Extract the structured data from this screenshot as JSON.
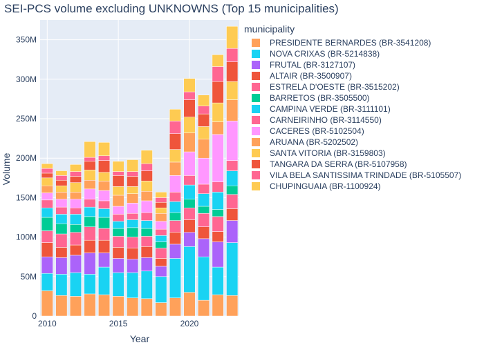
{
  "chart_data": {
    "type": "bar",
    "stacked": true,
    "title": "SEI-PCS volume excluding UNKNOWNS (Top 15 municipalities)",
    "xlabel": "Year",
    "ylabel": "Volume",
    "x_ticks": [
      "2010",
      "2015",
      "2020"
    ],
    "y_ticks": [
      "0",
      "50M",
      "100M",
      "150M",
      "200M",
      "250M",
      "300M",
      "350M"
    ],
    "ylim": [
      0,
      375000000
    ],
    "xlim": [
      2009.5,
      2023.5
    ],
    "legend_title": "municipality",
    "legend_position": "right",
    "grid": true,
    "categories": [
      2010,
      2011,
      2012,
      2013,
      2014,
      2015,
      2016,
      2017,
      2018,
      2019,
      2020,
      2021,
      2022,
      2023
    ],
    "series": [
      {
        "name": "PRESIDENTE BERNARDES (BR-3541208)",
        "color": "#FFA15A",
        "values": [
          32,
          26,
          25,
          28,
          27,
          25,
          23,
          22,
          17,
          23,
          30,
          20,
          27,
          26
        ]
      },
      {
        "name": "NOVA CRIXAS (BR-5214838)",
        "color": "#19D3F3",
        "values": [
          22,
          27,
          30,
          25,
          35,
          30,
          32,
          35,
          33,
          50,
          58,
          55,
          35,
          67
        ]
      },
      {
        "name": "FRUTAL (BR-3127107)",
        "color": "#AB63FA",
        "values": [
          21,
          21,
          22,
          27,
          18,
          18,
          17,
          17,
          13,
          18,
          18,
          23,
          32,
          28
        ]
      },
      {
        "name": "ALTAIR (BR-3500907)",
        "color": "#EF553B",
        "values": [
          18,
          13,
          13,
          16,
          16,
          14,
          14,
          14,
          10,
          15,
          16,
          15,
          13,
          15
        ]
      },
      {
        "name": "ESTRELA D'OESTE (BR-3515202)",
        "color": "#FF6692",
        "values": [
          15,
          17,
          16,
          17,
          15,
          14,
          14,
          13,
          13,
          15,
          15,
          17,
          19,
          18
        ]
      },
      {
        "name": "BARRETOS (BR-3505500)",
        "color": "#00CC96",
        "values": [
          17,
          13,
          10,
          13,
          14,
          10,
          12,
          10,
          8,
          10,
          11,
          9,
          9,
          11
        ]
      },
      {
        "name": "CAMPINA VERDE (BR-3111101)",
        "color": "#19D3F3",
        "values": [
          12,
          12,
          13,
          12,
          11,
          9,
          10,
          10,
          8,
          14,
          18,
          16,
          22,
          19
        ]
      },
      {
        "name": "CARNEIRINHO (BR-3114550)",
        "color": "#FF6692",
        "values": [
          10,
          9,
          8,
          10,
          10,
          9,
          8,
          10,
          8,
          12,
          12,
          12,
          13,
          13
        ]
      },
      {
        "name": "CACERES (BR-5102504)",
        "color": "#FF97FF",
        "values": [
          9,
          10,
          11,
          13,
          13,
          10,
          13,
          15,
          10,
          21,
          30,
          33,
          60,
          50
        ]
      },
      {
        "name": "ARUANA (BR-5202502)",
        "color": "#FFA15A",
        "values": [
          9,
          9,
          9,
          11,
          12,
          14,
          12,
          12,
          10,
          17,
          24,
          24,
          16,
          27
        ]
      },
      {
        "name": "SANTA VITORIA (BR-3159803)",
        "color": "#FECB52",
        "values": [
          10,
          8,
          12,
          13,
          11,
          11,
          9,
          13,
          7,
          16,
          20,
          16,
          24,
          23
        ]
      },
      {
        "name": "TANGARA DA SERRA (BR-5107958)",
        "color": "#EF553B",
        "values": [
          6,
          7,
          8,
          11,
          15,
          14,
          13,
          13,
          7,
          20,
          22,
          16,
          27,
          25
        ]
      },
      {
        "name": "VILA BELA SANTISSIMA TRINDADE (BR-5105507)",
        "color": "#FF6692",
        "values": [
          6,
          6,
          6,
          5,
          6,
          5,
          6,
          9,
          6,
          16,
          10,
          10,
          19,
          17
        ]
      },
      {
        "name": "CHUPINGUAIA (BR-1100924)",
        "color": "#FECB52",
        "values": [
          6,
          6,
          9,
          20,
          17,
          13,
          15,
          17,
          7,
          15,
          17,
          14,
          15,
          28
        ]
      }
    ]
  }
}
